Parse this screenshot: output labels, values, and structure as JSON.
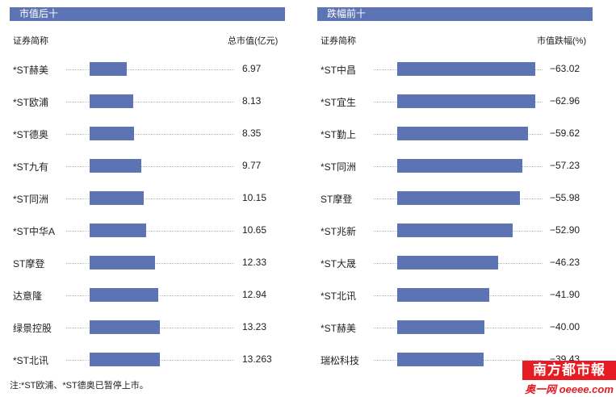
{
  "chart_data": [
    {
      "type": "bar",
      "title": "市值后十",
      "category_header": "证券简称",
      "value_header": "总市值(亿元)",
      "categories": [
        "*ST赫美",
        "*ST欧浦",
        "*ST德奥",
        "*ST九有",
        "*ST同洲",
        "*ST中华A",
        "ST摩登",
        "达意隆",
        "绿景控股",
        "*ST北讯"
      ],
      "values": [
        6.97,
        8.13,
        8.35,
        9.77,
        10.15,
        10.65,
        12.33,
        12.94,
        13.23,
        13.263
      ],
      "value_labels": [
        "6.97",
        "8.13",
        "8.35",
        "9.77",
        "10.15",
        "10.65",
        "12.33",
        "12.94",
        "13.23",
        "13.263"
      ]
    },
    {
      "type": "bar",
      "title": "跌幅前十",
      "category_header": "证券简称",
      "value_header": "市值跌幅(%)",
      "categories": [
        "*ST中昌",
        "*ST宜生",
        "*ST勤上",
        "*ST同洲",
        "ST摩登",
        "*ST兆新",
        "*ST大晟",
        "*ST北讯",
        "*ST赫美",
        "瑞松科技"
      ],
      "values": [
        -63.02,
        -62.96,
        -59.62,
        -57.23,
        -55.98,
        -52.9,
        -46.23,
        -41.9,
        -40.0,
        -39.43
      ],
      "value_labels": [
        "−63.02",
        "−62.96",
        "−59.62",
        "−57.23",
        "−55.98",
        "−52.90",
        "−46.23",
        "−41.90",
        "−40.00",
        "−39.43"
      ]
    }
  ],
  "note": "注:*ST欧浦、*ST德奥已暂停上市。",
  "watermark": {
    "top": "南方都市報",
    "bottom": "奥一网 oeeee.com"
  },
  "colors": {
    "bar": "#5d74b4",
    "header": "#5d74b4",
    "watermark": "#e51c23"
  }
}
